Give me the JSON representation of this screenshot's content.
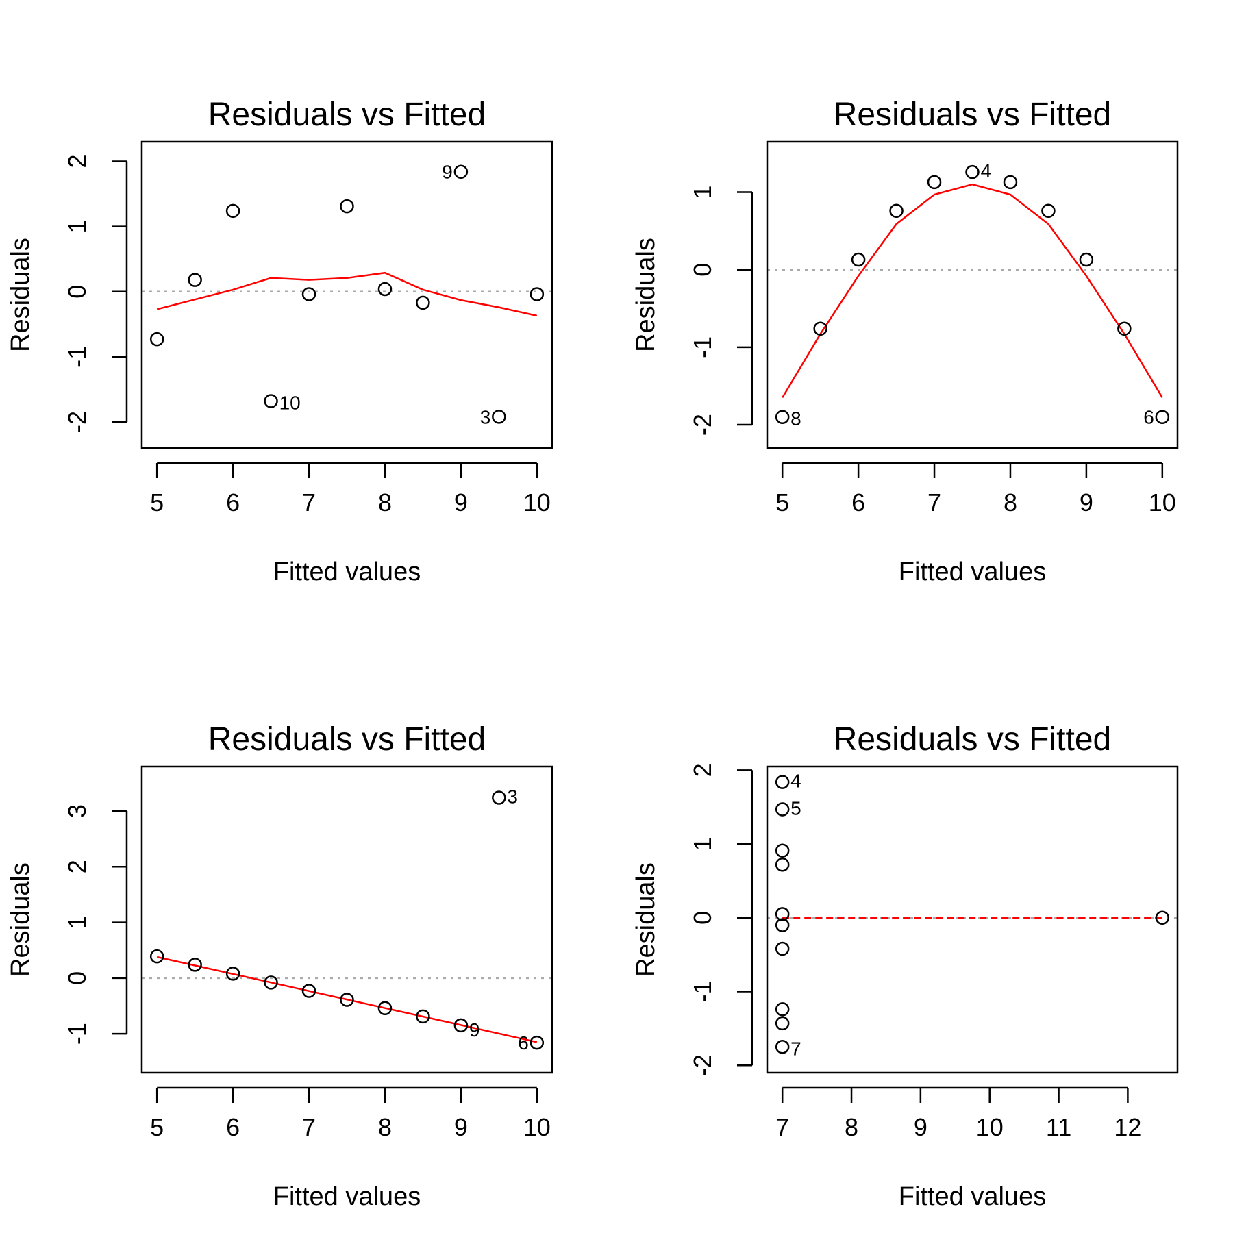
{
  "chart_data": [
    {
      "type": "scatter",
      "title": "Residuals vs Fitted",
      "xlabel": "Fitted values",
      "ylabel": "Residuals",
      "xlim": [
        4.8,
        10.2
      ],
      "ylim": [
        -2.4,
        2.3
      ],
      "xticks": [
        "5",
        "6",
        "7",
        "8",
        "9",
        "10"
      ],
      "yticks": [
        "-2",
        "-1",
        "0",
        "1",
        "2"
      ],
      "points": [
        {
          "x": 5.0,
          "y": -0.73
        },
        {
          "x": 5.5,
          "y": 0.18
        },
        {
          "x": 6.0,
          "y": 1.24
        },
        {
          "x": 6.5,
          "y": -1.68,
          "label": "10",
          "label_side": "right"
        },
        {
          "x": 7.0,
          "y": -0.04
        },
        {
          "x": 7.5,
          "y": 1.31
        },
        {
          "x": 8.0,
          "y": 0.04
        },
        {
          "x": 8.5,
          "y": -0.17
        },
        {
          "x": 9.0,
          "y": 1.84,
          "label": "9",
          "label_side": "left"
        },
        {
          "x": 9.5,
          "y": -1.92,
          "label": "3",
          "label_side": "left"
        },
        {
          "x": 10.0,
          "y": -0.04
        }
      ],
      "smooth_line": {
        "x": [
          5.0,
          5.5,
          6.0,
          6.5,
          7.0,
          7.5,
          8.0,
          8.5,
          9.0,
          9.5,
          10.0
        ],
        "y": [
          -0.27,
          -0.12,
          0.03,
          0.21,
          0.18,
          0.21,
          0.29,
          0.03,
          -0.13,
          -0.24,
          -0.37
        ],
        "color": "#ff0000",
        "style": "solid"
      },
      "reference_line": {
        "y": 0,
        "color": "#aaaaaa",
        "style": "dotted"
      }
    },
    {
      "type": "scatter",
      "title": "Residuals vs Fitted",
      "xlabel": "Fitted values",
      "ylabel": "Residuals",
      "xlim": [
        4.8,
        10.2
      ],
      "ylim": [
        -2.3,
        1.65
      ],
      "xticks": [
        "5",
        "6",
        "7",
        "8",
        "9",
        "10"
      ],
      "yticks": [
        "-2",
        "-1",
        "0",
        "1"
      ],
      "points": [
        {
          "x": 5.0,
          "y": -1.9,
          "label": "8",
          "label_side": "right"
        },
        {
          "x": 5.5,
          "y": -0.76
        },
        {
          "x": 6.0,
          "y": 0.13
        },
        {
          "x": 6.5,
          "y": 0.76
        },
        {
          "x": 7.0,
          "y": 1.13
        },
        {
          "x": 7.5,
          "y": 1.26,
          "label": "4",
          "label_side": "right"
        },
        {
          "x": 8.0,
          "y": 1.13
        },
        {
          "x": 8.5,
          "y": 0.76
        },
        {
          "x": 9.0,
          "y": 0.13
        },
        {
          "x": 9.5,
          "y": -0.76
        },
        {
          "x": 10.0,
          "y": -1.9,
          "label": "6",
          "label_side": "left"
        }
      ],
      "smooth_line": {
        "x": [
          5.0,
          5.5,
          6.0,
          6.5,
          7.0,
          7.5,
          8.0,
          8.5,
          9.0,
          9.5,
          10.0
        ],
        "y": [
          -1.65,
          -0.83,
          -0.08,
          0.59,
          0.97,
          1.1,
          0.97,
          0.59,
          -0.08,
          -0.83,
          -1.65
        ],
        "color": "#ff0000",
        "style": "solid"
      },
      "reference_line": {
        "y": 0,
        "color": "#aaaaaa",
        "style": "dotted"
      }
    },
    {
      "type": "scatter",
      "title": "Residuals vs Fitted",
      "xlabel": "Fitted values",
      "ylabel": "Residuals",
      "xlim": [
        4.8,
        10.2
      ],
      "ylim": [
        -1.7,
        3.8
      ],
      "xticks": [
        "5",
        "6",
        "7",
        "8",
        "9",
        "10"
      ],
      "yticks": [
        "-1",
        "0",
        "1",
        "2",
        "3"
      ],
      "points": [
        {
          "x": 5.0,
          "y": 0.39
        },
        {
          "x": 5.5,
          "y": 0.24
        },
        {
          "x": 6.0,
          "y": 0.08
        },
        {
          "x": 6.5,
          "y": -0.08
        },
        {
          "x": 7.0,
          "y": -0.23
        },
        {
          "x": 7.5,
          "y": -0.39
        },
        {
          "x": 8.0,
          "y": -0.54
        },
        {
          "x": 8.5,
          "y": -0.69
        },
        {
          "x": 9.0,
          "y": -0.85,
          "label": "9",
          "label_side": "right-below"
        },
        {
          "x": 9.5,
          "y": 3.24,
          "label": "3",
          "label_side": "right"
        },
        {
          "x": 10.0,
          "y": -1.16,
          "label": "6",
          "label_side": "left"
        }
      ],
      "smooth_line": {
        "x": [
          5.0,
          10.0
        ],
        "y": [
          0.38,
          -1.15
        ],
        "color": "#ff0000",
        "style": "solid"
      },
      "reference_line": {
        "y": 0,
        "color": "#aaaaaa",
        "style": "dotted"
      }
    },
    {
      "type": "scatter",
      "title": "Residuals vs Fitted",
      "xlabel": "Fitted values",
      "ylabel": "Residuals",
      "xlim": [
        6.78,
        12.72
      ],
      "ylim": [
        -2.1,
        2.05
      ],
      "xticks": [
        "7",
        "8",
        "9",
        "10",
        "11",
        "12"
      ],
      "yticks": [
        "-2",
        "-1",
        "0",
        "1",
        "2"
      ],
      "points": [
        {
          "x": 7.0,
          "y": 1.84,
          "label": "4",
          "label_side": "right"
        },
        {
          "x": 7.0,
          "y": 1.47,
          "label": "5",
          "label_side": "right"
        },
        {
          "x": 7.0,
          "y": 0.91
        },
        {
          "x": 7.0,
          "y": 0.72
        },
        {
          "x": 7.0,
          "y": 0.05
        },
        {
          "x": 7.0,
          "y": -0.1
        },
        {
          "x": 7.0,
          "y": -0.42
        },
        {
          "x": 7.0,
          "y": -1.24
        },
        {
          "x": 7.0,
          "y": -1.43
        },
        {
          "x": 7.0,
          "y": -1.75,
          "label": "7",
          "label_side": "right"
        },
        {
          "x": 12.5,
          "y": 0.0
        }
      ],
      "smooth_line": {
        "x": [
          7.0,
          12.5
        ],
        "y": [
          0.0,
          0.0
        ],
        "color": "#ff0000",
        "style": "dashed"
      },
      "reference_line": {
        "y": 0,
        "color": "#aaaaaa",
        "style": "dotted"
      }
    }
  ]
}
